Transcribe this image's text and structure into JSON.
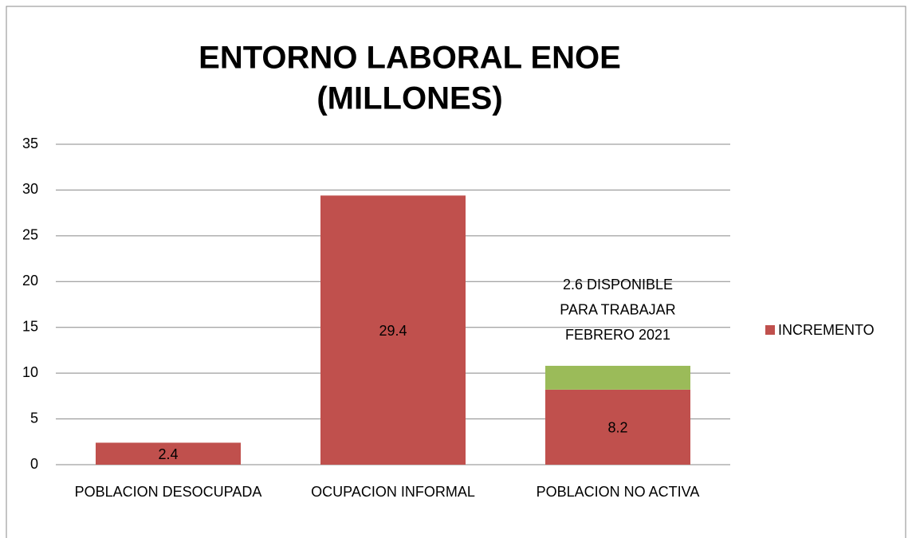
{
  "chart_data": {
    "type": "stacked_bar",
    "title": [
      "ENTORNO LABORAL ENOE",
      "(MILLONES)"
    ],
    "categories": [
      "POBLACION DESOCUPADA",
      "OCUPACION INFORMAL",
      "POBLACION NO ACTIVA"
    ],
    "series": [
      {
        "name": "INCREMENTO",
        "color": "#c0504d",
        "values": [
          2.4,
          29.4,
          8.2
        ]
      },
      {
        "color": "#9bbb59",
        "values": [
          null,
          null,
          2.6
        ]
      }
    ],
    "annotation": [
      "2.6 DISPONIBLE",
      "PARA TRABAJAR",
      "FEBRERO 2021"
    ],
    "ylim": [
      0,
      35
    ],
    "yticks": [
      0,
      5,
      10,
      15,
      20,
      25,
      30,
      35
    ],
    "grid": true,
    "legend": "right"
  }
}
